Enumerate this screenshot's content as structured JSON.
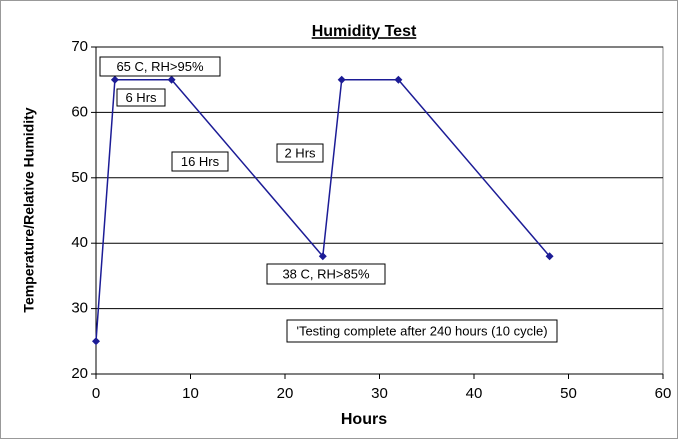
{
  "chart_data": {
    "type": "line",
    "title": "Humidity Test",
    "x_label": "Hours",
    "y_label": "Temperature/Relative Humidity",
    "x": [
      0,
      2,
      8,
      24,
      26,
      32,
      48
    ],
    "series": [
      {
        "name": "Humidity",
        "color": "#1c1c96",
        "values": [
          25,
          65,
          65,
          38,
          65,
          65,
          38
        ]
      }
    ],
    "xlim": [
      0,
      60
    ],
    "xticks": [
      0,
      10,
      20,
      30,
      40,
      50,
      60
    ],
    "ylim": [
      20,
      70
    ],
    "yticks": [
      20,
      30,
      40,
      50,
      60,
      70
    ],
    "grid": true,
    "annotations": [
      "65 C, RH>95%",
      "6 Hrs",
      "16 Hrs",
      "2 Hrs",
      "38 C, RH>85%",
      "'Testing complete after 240 hours (10 cycle)"
    ]
  }
}
